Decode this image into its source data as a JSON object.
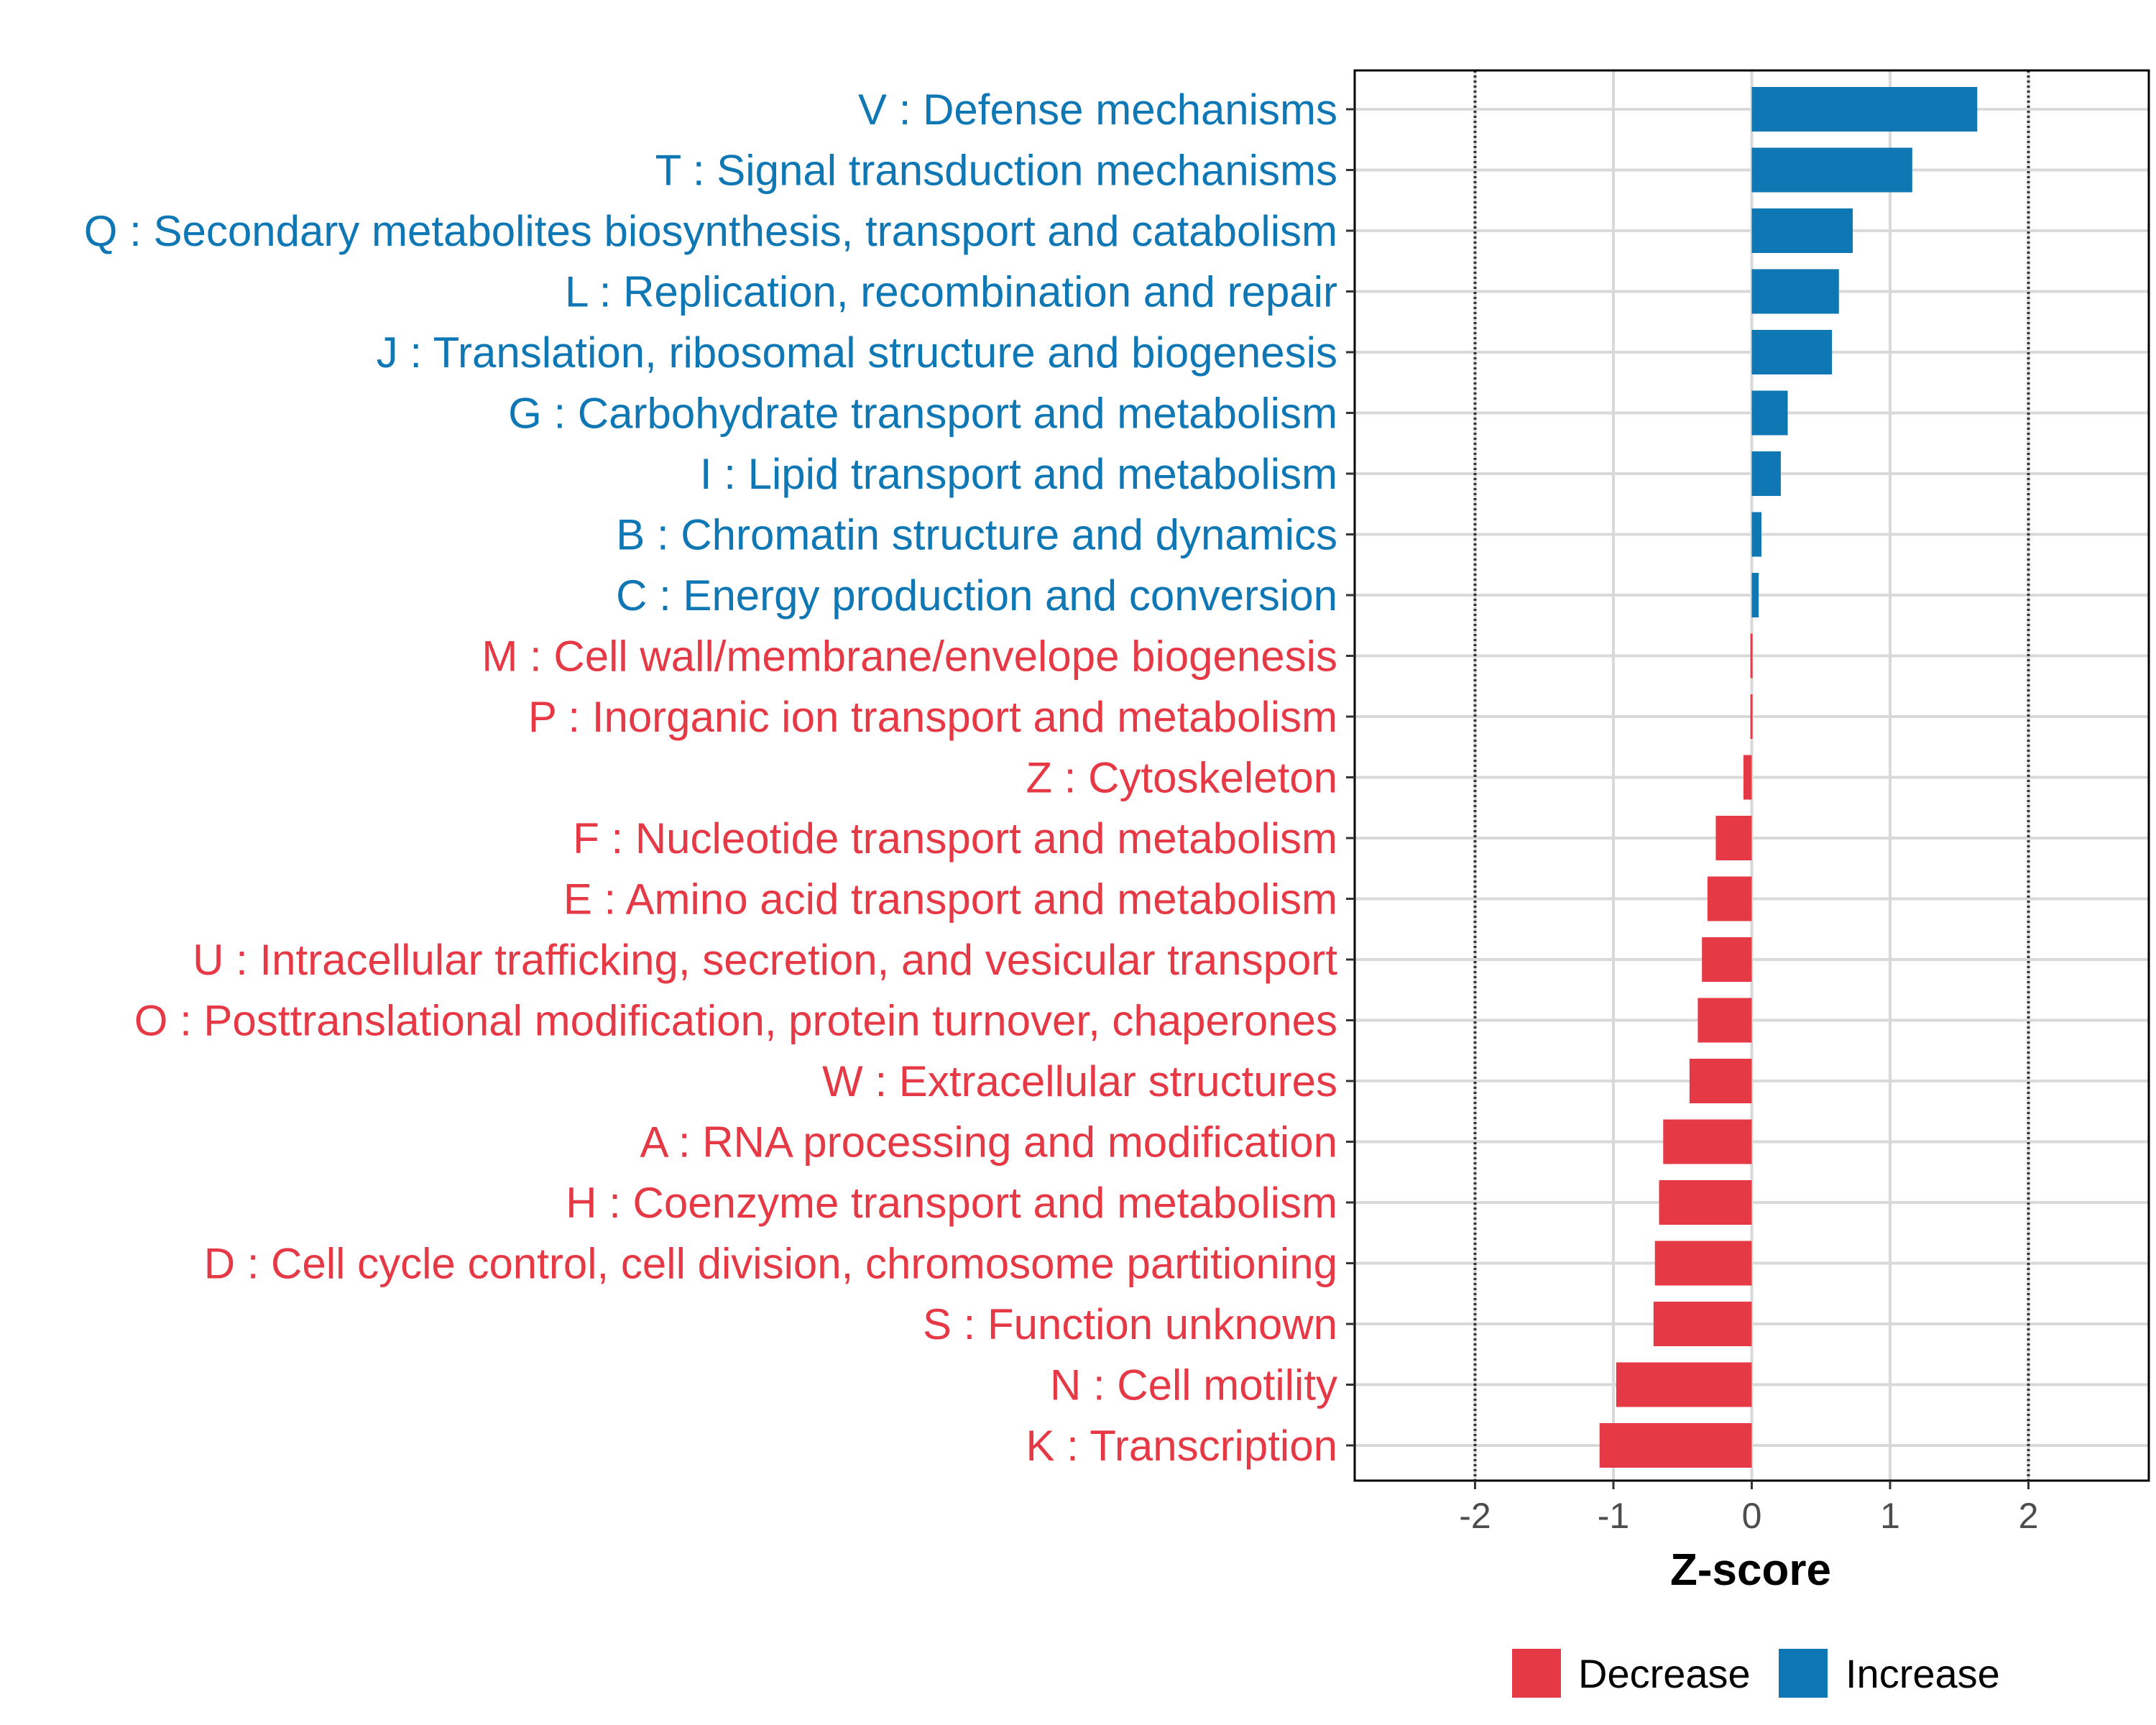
{
  "colors": {
    "increase": "#0e77b4",
    "decrease": "#e63946",
    "grid": "#d9d9d9",
    "panel_border": "#000000",
    "ref_line": "#333333",
    "tick_text": "#4d4d4d"
  },
  "chart_data": {
    "type": "bar",
    "orientation": "horizontal",
    "title": "",
    "xlabel": "Z-score",
    "ylabel": "",
    "xlim": [
      -2.87,
      2.87
    ],
    "xticks": [
      -2,
      -1,
      0,
      1,
      2
    ],
    "xtick_labels": [
      "-2",
      "-1",
      "0",
      "1",
      "2"
    ],
    "reference_lines": [
      -2,
      2
    ],
    "grid": true,
    "legend_position": "bottom",
    "legend": [
      {
        "label": "Decrease",
        "color": "#e63946"
      },
      {
        "label": "Increase",
        "color": "#0e77b4"
      }
    ],
    "categories": [
      "V : Defense mechanisms",
      "T : Signal transduction mechanisms",
      "Q : Secondary metabolites biosynthesis, transport and catabolism",
      "L : Replication, recombination and repair",
      "J : Translation, ribosomal structure and biogenesis",
      "G : Carbohydrate transport and metabolism",
      "I : Lipid transport and metabolism",
      "B : Chromatin structure and dynamics",
      "C : Energy production and conversion",
      "M : Cell wall/membrane/envelope biogenesis",
      "P : Inorganic ion transport and metabolism",
      "Z : Cytoskeleton",
      "F : Nucleotide transport and metabolism",
      "E : Amino acid transport and metabolism",
      "U : Intracellular trafficking, secretion, and vesicular transport",
      "O : Posttranslational modification, protein turnover, chaperones",
      "W : Extracellular structures",
      "A : RNA processing and modification",
      "H : Coenzyme transport and metabolism",
      "D : Cell cycle control, cell division, chromosome partitioning",
      "S : Function unknown",
      "N : Cell motility",
      "K : Transcription"
    ],
    "values": [
      1.63,
      1.16,
      0.73,
      0.63,
      0.58,
      0.26,
      0.21,
      0.07,
      0.05,
      -0.01,
      -0.01,
      -0.06,
      -0.26,
      -0.32,
      -0.36,
      -0.39,
      -0.45,
      -0.64,
      -0.67,
      -0.7,
      -0.71,
      -0.98,
      -1.1
    ],
    "groups": [
      "Increase",
      "Increase",
      "Increase",
      "Increase",
      "Increase",
      "Increase",
      "Increase",
      "Increase",
      "Increase",
      "Decrease",
      "Decrease",
      "Decrease",
      "Decrease",
      "Decrease",
      "Decrease",
      "Decrease",
      "Decrease",
      "Decrease",
      "Decrease",
      "Decrease",
      "Decrease",
      "Decrease",
      "Decrease"
    ]
  }
}
